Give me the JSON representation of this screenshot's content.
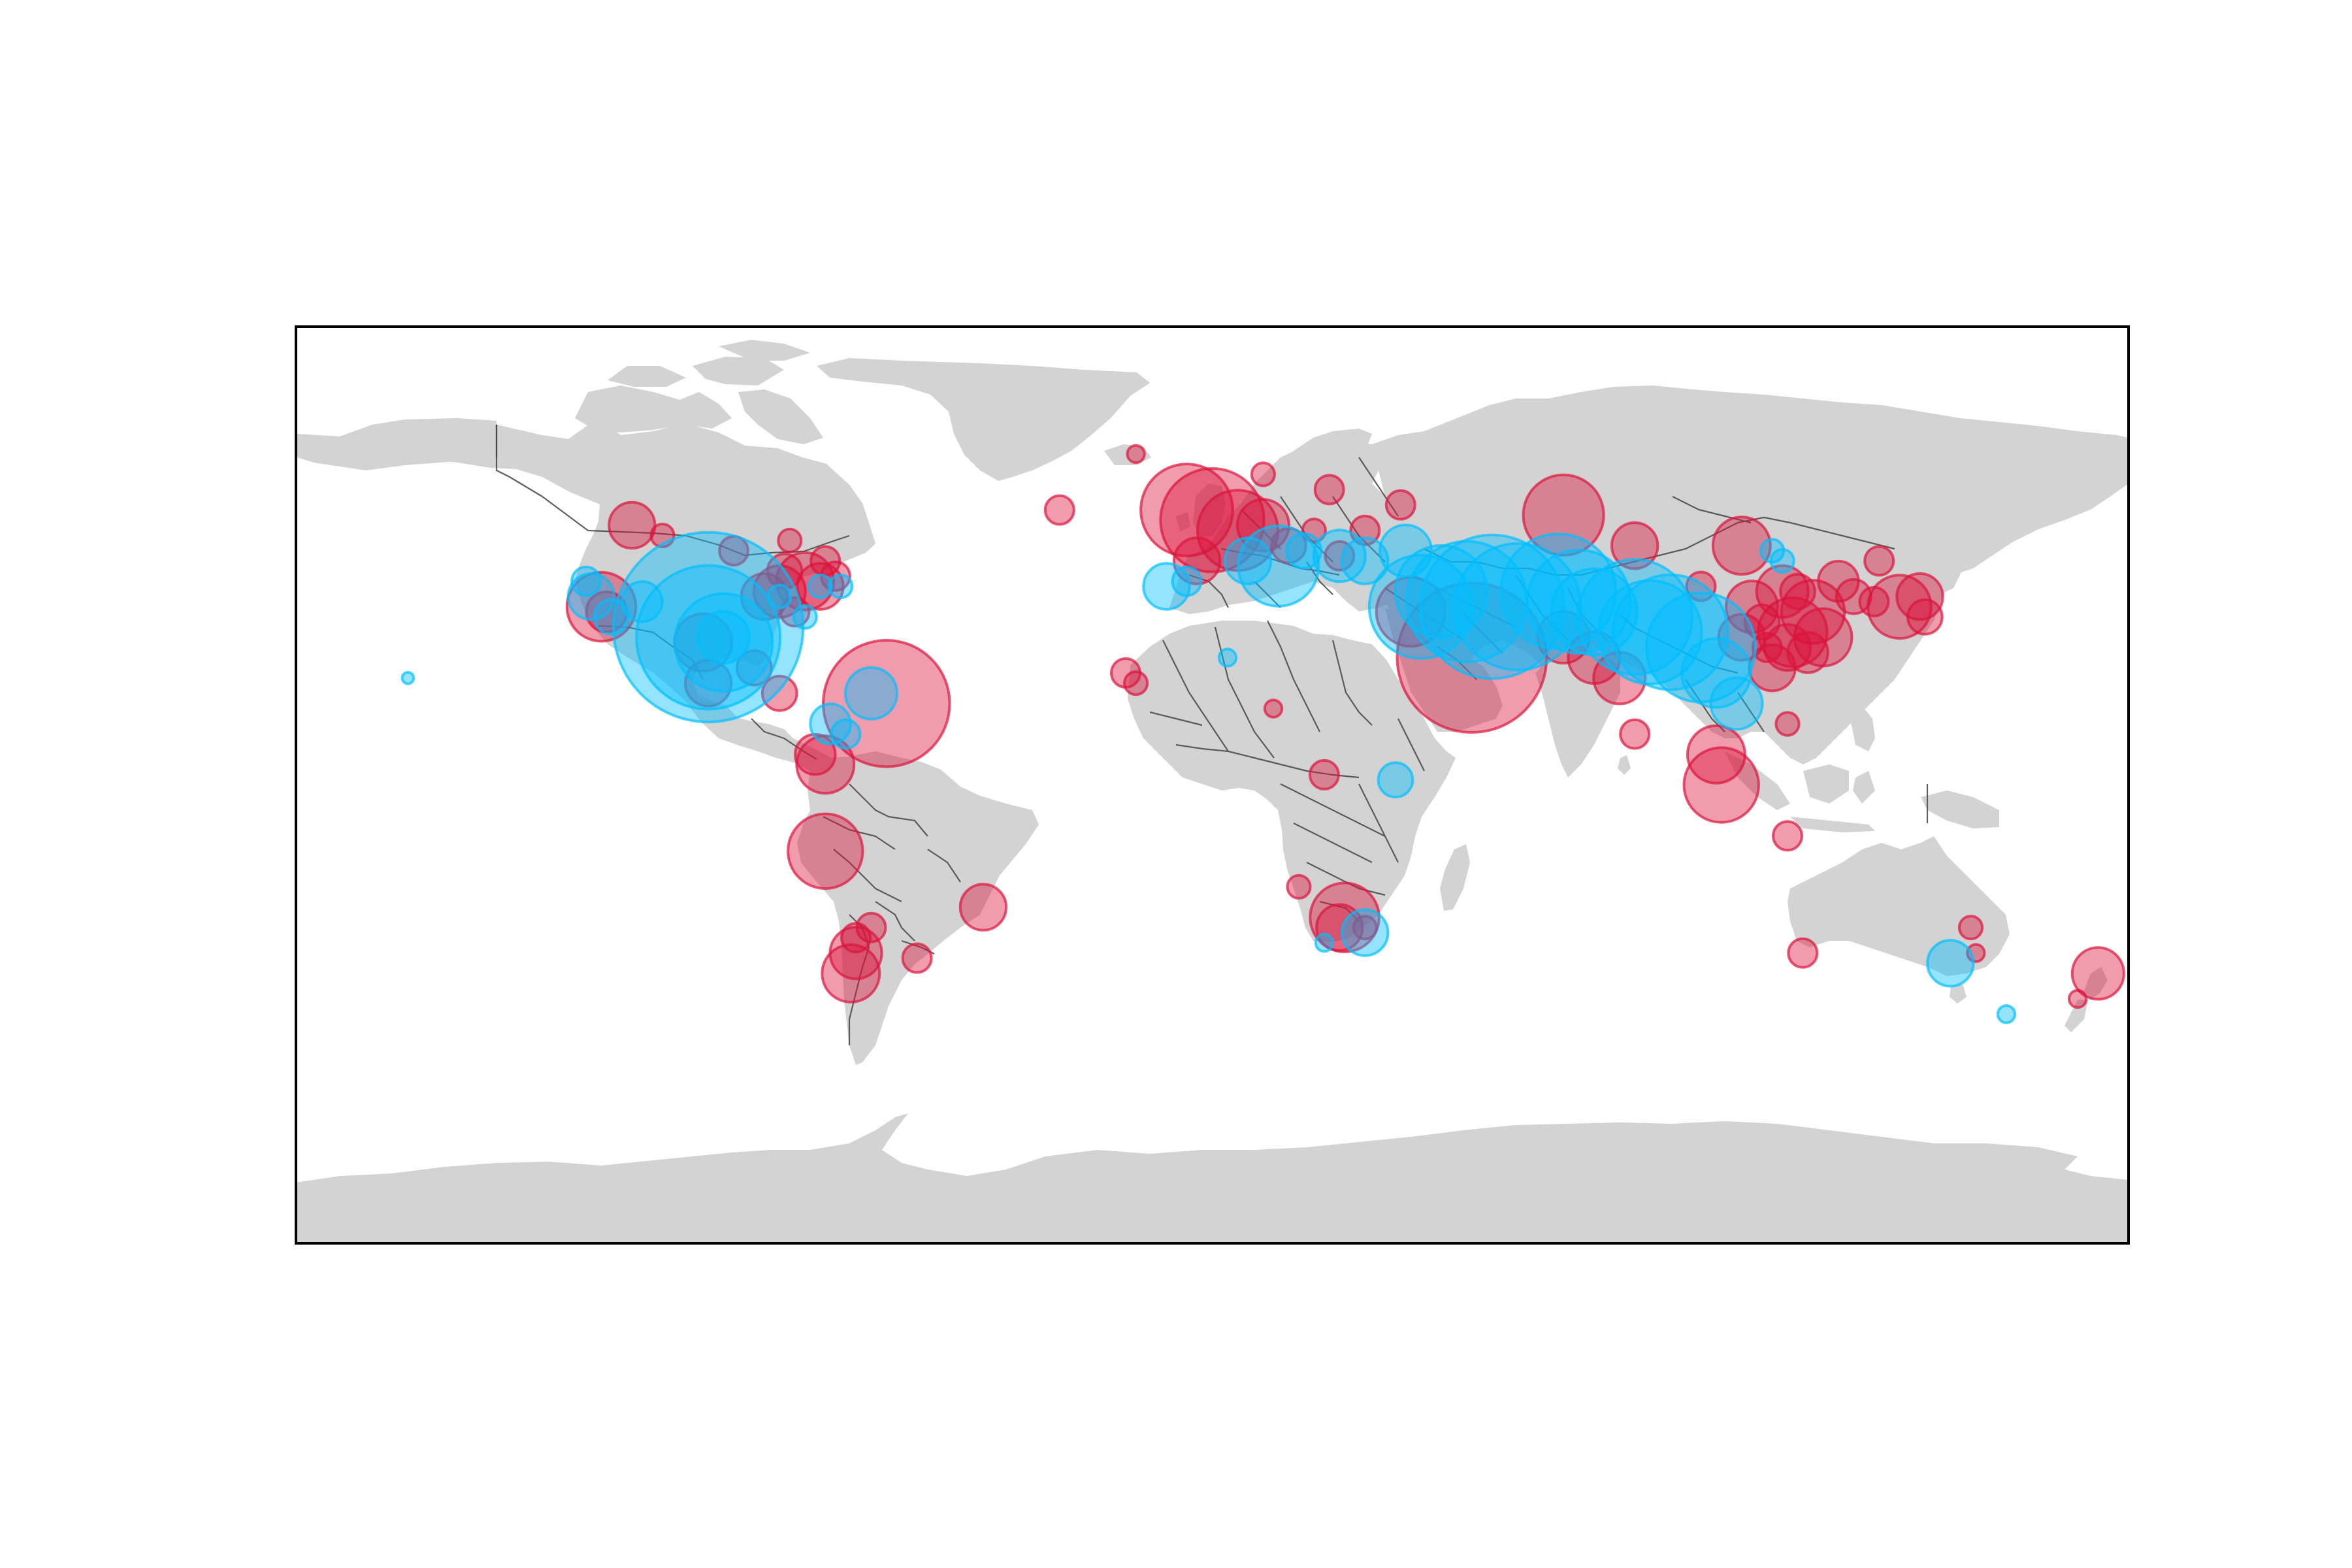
{
  "chart_data": {
    "type": "scatter",
    "title": "",
    "projection": "equirectangular",
    "xlim": [
      -180,
      180
    ],
    "ylim": [
      -90,
      90
    ],
    "colors": {
      "land": "#d3d3d3",
      "borders": "#444444",
      "series_a": "#dc143c",
      "series_b": "#00bfff",
      "frame": "#000000"
    },
    "series": [
      {
        "color": "#dc143c",
        "points": [
          {
            "lon": -30,
            "lat": 54,
            "r": 5
          },
          {
            "lon": -108,
            "lat": 49,
            "r": 4
          },
          {
            "lon": -114,
            "lat": 51,
            "r": 8
          },
          {
            "lon": -94,
            "lat": 46,
            "r": 5
          },
          {
            "lon": -83,
            "lat": 48,
            "r": 4
          },
          {
            "lon": -76,
            "lat": 44,
            "r": 5
          },
          {
            "lon": -74,
            "lat": 41,
            "r": 5
          },
          {
            "lon": -80,
            "lat": 40,
            "r": 10
          },
          {
            "lon": -85,
            "lat": 38,
            "r": 9
          },
          {
            "lon": -88,
            "lat": 37,
            "r": 8
          },
          {
            "lon": -77,
            "lat": 39,
            "r": 8
          },
          {
            "lon": -82,
            "lat": 34,
            "r": 5
          },
          {
            "lon": -84,
            "lat": 42,
            "r": 6
          },
          {
            "lon": -120,
            "lat": 35,
            "r": 12
          },
          {
            "lon": -119,
            "lat": 34,
            "r": 7
          },
          {
            "lon": -100,
            "lat": 28,
            "r": 10
          },
          {
            "lon": -99,
            "lat": 20,
            "r": 8
          },
          {
            "lon": -90,
            "lat": 23,
            "r": 6
          },
          {
            "lon": -85,
            "lat": 18,
            "r": 6
          },
          {
            "lon": -64,
            "lat": 16,
            "r": 22
          },
          {
            "lon": -76,
            "lat": 4,
            "r": 10
          },
          {
            "lon": -78,
            "lat": 6,
            "r": 7
          },
          {
            "lon": -76,
            "lat": -13,
            "r": 13
          },
          {
            "lon": -70,
            "lat": -33,
            "r": 9
          },
          {
            "lon": -70,
            "lat": -30,
            "r": 5
          },
          {
            "lon": -71,
            "lat": -37,
            "r": 10
          },
          {
            "lon": -58,
            "lat": -34,
            "r": 5
          },
          {
            "lon": -45,
            "lat": -24,
            "r": 8
          },
          {
            "lon": -67,
            "lat": -28,
            "r": 5
          },
          {
            "lon": -15,
            "lat": 65,
            "r": 3
          },
          {
            "lon": -5,
            "lat": 54,
            "r": 16
          },
          {
            "lon": 0,
            "lat": 52,
            "r": 18
          },
          {
            "lon": 5,
            "lat": 50,
            "r": 14
          },
          {
            "lon": 10,
            "lat": 51,
            "r": 9
          },
          {
            "lon": -3,
            "lat": 44,
            "r": 8
          },
          {
            "lon": 15,
            "lat": 47,
            "r": 6
          },
          {
            "lon": 20,
            "lat": 50,
            "r": 4
          },
          {
            "lon": 25,
            "lat": 45,
            "r": 5
          },
          {
            "lon": 30,
            "lat": 50,
            "r": 5
          },
          {
            "lon": 23,
            "lat": 58,
            "r": 5
          },
          {
            "lon": 37,
            "lat": 55,
            "r": 5
          },
          {
            "lon": 10,
            "lat": 61,
            "r": 4
          },
          {
            "lon": -17,
            "lat": 22,
            "r": 5
          },
          {
            "lon": -15,
            "lat": 20,
            "r": 4
          },
          {
            "lon": 39,
            "lat": 34,
            "r": 12
          },
          {
            "lon": 51,
            "lat": 25,
            "r": 26
          },
          {
            "lon": 69,
            "lat": 53,
            "r": 14
          },
          {
            "lon": 83,
            "lat": 47,
            "r": 8
          },
          {
            "lon": 69,
            "lat": 29,
            "r": 9
          },
          {
            "lon": 75,
            "lat": 25,
            "r": 9
          },
          {
            "lon": 80,
            "lat": 21,
            "r": 9
          },
          {
            "lon": 83,
            "lat": 10,
            "r": 5
          },
          {
            "lon": 96,
            "lat": 39,
            "r": 5
          },
          {
            "lon": 104,
            "lat": 47,
            "r": 10
          },
          {
            "lon": 99,
            "lat": 6,
            "r": 10
          },
          {
            "lon": 100,
            "lat": 0,
            "r": 13
          },
          {
            "lon": 114,
            "lat": 30,
            "r": 12
          },
          {
            "lon": 118,
            "lat": 34,
            "r": 11
          },
          {
            "lon": 120,
            "lat": 29,
            "r": 10
          },
          {
            "lon": 110,
            "lat": 23,
            "r": 8
          },
          {
            "lon": 112,
            "lat": 38,
            "r": 9
          },
          {
            "lon": 123,
            "lat": 40,
            "r": 7
          },
          {
            "lon": 126,
            "lat": 37,
            "r": 6
          },
          {
            "lon": 130,
            "lat": 36,
            "r": 5
          },
          {
            "lon": 135,
            "lat": 35,
            "r": 11
          },
          {
            "lon": 139,
            "lat": 37,
            "r": 8
          },
          {
            "lon": 140,
            "lat": 33,
            "r": 6
          },
          {
            "lon": 106,
            "lat": 35,
            "r": 9
          },
          {
            "lon": 104,
            "lat": 29,
            "r": 8
          },
          {
            "lon": 113,
            "lat": 27,
            "r": 8
          },
          {
            "lon": 117,
            "lat": 26,
            "r": 7
          },
          {
            "lon": 108,
            "lat": 32,
            "r": 6
          },
          {
            "lon": 109,
            "lat": 27,
            "r": 5
          },
          {
            "lon": 115,
            "lat": 38,
            "r": 6
          },
          {
            "lon": 131,
            "lat": 44,
            "r": 5
          },
          {
            "lon": 113,
            "lat": 12,
            "r": 4
          },
          {
            "lon": 113,
            "lat": -10,
            "r": 5
          },
          {
            "lon": 116,
            "lat": -33,
            "r": 5
          },
          {
            "lon": 149,
            "lat": -28,
            "r": 4
          },
          {
            "lon": 150,
            "lat": -33,
            "r": 3
          },
          {
            "lon": 174,
            "lat": -37,
            "r": 9
          },
          {
            "lon": 170,
            "lat": -42,
            "r": 3
          },
          {
            "lon": 12,
            "lat": 15,
            "r": 3
          },
          {
            "lon": 26,
            "lat": -26,
            "r": 12
          },
          {
            "lon": 25,
            "lat": -28,
            "r": 8
          },
          {
            "lon": 30,
            "lat": -28,
            "r": 4
          },
          {
            "lon": 22,
            "lat": 2,
            "r": 5
          },
          {
            "lon": 17,
            "lat": -20,
            "r": 4
          }
        ]
      },
      {
        "color": "#00bfff",
        "points": [
          {
            "lon": -158,
            "lat": 21,
            "r": 2
          },
          {
            "lon": -123,
            "lat": 40,
            "r": 5
          },
          {
            "lon": -122,
            "lat": 37,
            "r": 8
          },
          {
            "lon": -118,
            "lat": 33,
            "r": 6
          },
          {
            "lon": -112,
            "lat": 36,
            "r": 7
          },
          {
            "lon": -99,
            "lat": 31,
            "r": 33
          },
          {
            "lon": -99,
            "lat": 29,
            "r": 25
          },
          {
            "lon": -96,
            "lat": 28,
            "r": 17
          },
          {
            "lon": -96,
            "lat": 29,
            "r": 9
          },
          {
            "lon": -85,
            "lat": 37,
            "r": 4
          },
          {
            "lon": -80,
            "lat": 33,
            "r": 4
          },
          {
            "lon": -77,
            "lat": 39,
            "r": 4
          },
          {
            "lon": -73,
            "lat": 39,
            "r": 4
          },
          {
            "lon": -67,
            "lat": 18,
            "r": 9
          },
          {
            "lon": -75,
            "lat": 12,
            "r": 7
          },
          {
            "lon": -72,
            "lat": 10,
            "r": 5
          },
          {
            "lon": -9,
            "lat": 39,
            "r": 8
          },
          {
            "lon": -5,
            "lat": 40,
            "r": 5
          },
          {
            "lon": 13,
            "lat": 43,
            "r": 14
          },
          {
            "lon": 7,
            "lat": 44,
            "r": 8
          },
          {
            "lon": 18,
            "lat": 46,
            "r": 6
          },
          {
            "lon": 25,
            "lat": 45,
            "r": 9
          },
          {
            "lon": 30,
            "lat": 44,
            "r": 8
          },
          {
            "lon": 38,
            "lat": 46,
            "r": 9
          },
          {
            "lon": 3,
            "lat": 25,
            "r": 3
          },
          {
            "lon": 41,
            "lat": 35,
            "r": 18
          },
          {
            "lon": 45,
            "lat": 38,
            "r": 16
          },
          {
            "lon": 50,
            "lat": 36,
            "r": 21
          },
          {
            "lon": 55,
            "lat": 35,
            "r": 25
          },
          {
            "lon": 60,
            "lat": 35,
            "r": 22
          },
          {
            "lon": 68,
            "lat": 38,
            "r": 20
          },
          {
            "lon": 72,
            "lat": 36,
            "r": 18
          },
          {
            "lon": 75,
            "lat": 34,
            "r": 15
          },
          {
            "lon": 83,
            "lat": 33,
            "r": 20
          },
          {
            "lon": 86,
            "lat": 30,
            "r": 18
          },
          {
            "lon": 90,
            "lat": 30,
            "r": 20
          },
          {
            "lon": 96,
            "lat": 27,
            "r": 19
          },
          {
            "lon": 99,
            "lat": 22,
            "r": 12
          },
          {
            "lon": 103,
            "lat": 16,
            "r": 9
          },
          {
            "lon": 110,
            "lat": 46,
            "r": 4
          },
          {
            "lon": 112,
            "lat": 44,
            "r": 4
          },
          {
            "lon": 30,
            "lat": -29,
            "r": 8
          },
          {
            "lon": 22,
            "lat": -31,
            "r": 3
          },
          {
            "lon": 36,
            "lat": 1,
            "r": 6
          },
          {
            "lon": 145,
            "lat": -35,
            "r": 8
          },
          {
            "lon": 156,
            "lat": -45,
            "r": 3
          }
        ]
      }
    ]
  }
}
